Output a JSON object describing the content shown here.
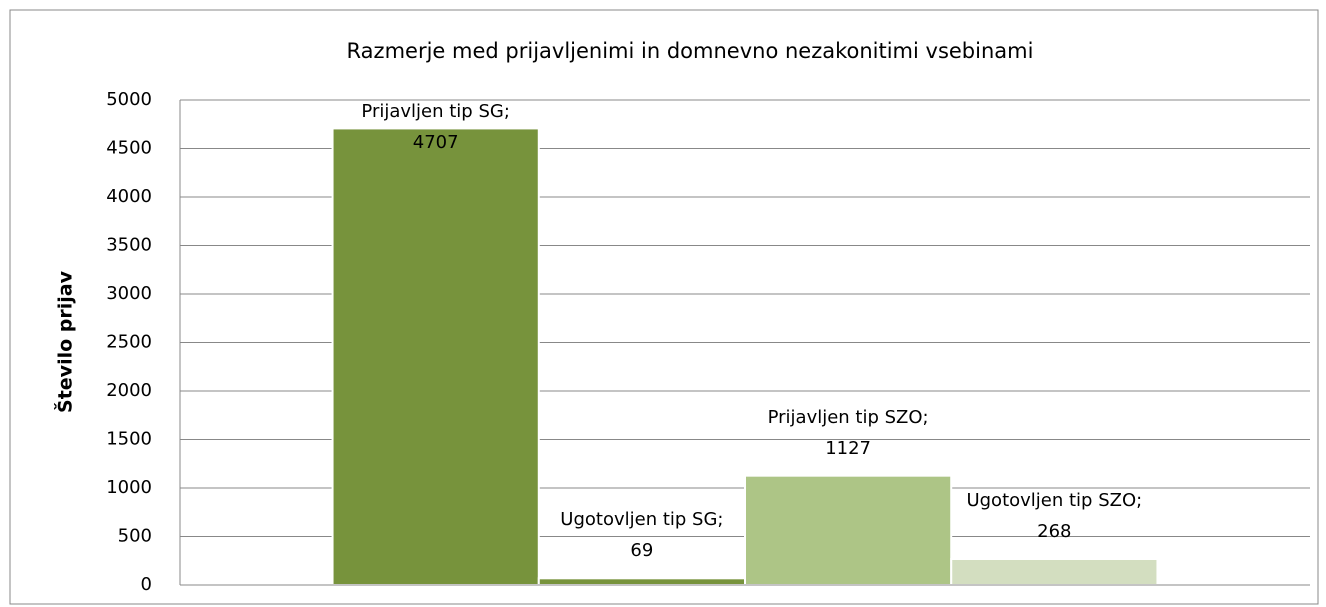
{
  "chart_data": {
    "type": "bar",
    "title": "Razmerje med prijavljenimi in domnevno nezakonitimi vsebinami",
    "y_label": "Število prijav",
    "categories": [
      null
    ],
    "series": [
      {
        "name": "Prijavljen tip SG",
        "color": "#77933c",
        "values": [
          4707
        ],
        "value_labels": [
          "Prijavljen tip SG;\n4707"
        ]
      },
      {
        "name": "Ugotovljen tip SG",
        "color": "#77933c",
        "values": [
          69
        ],
        "value_labels": [
          "Ugotovljen tip SG;\n69"
        ]
      },
      {
        "name": "Prijavljen tip SZO",
        "color": "#adc586",
        "values": [
          1127
        ],
        "value_labels": [
          "Prijavljen tip SZO;\n1127"
        ]
      },
      {
        "name": "Ugotovljen tip SZO",
        "color": "#d3dec0",
        "values": [
          268
        ],
        "value_labels": [
          "Ugotovljen tip SZO;\n268"
        ]
      }
    ],
    "ylim": [
      0,
      5000
    ],
    "yticks": [
      0,
      500,
      1000,
      1500,
      2000,
      2500,
      3000,
      3500,
      4000,
      4500,
      5000
    ],
    "grid": true
  }
}
